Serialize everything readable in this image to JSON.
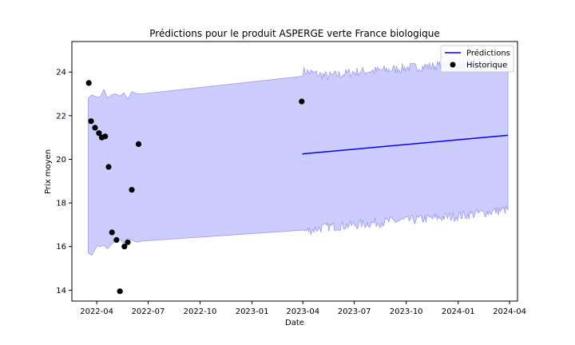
{
  "chart_data": {
    "type": "line",
    "title": "Prédictions pour le produit ASPERGE verte France biologique",
    "xlabel": "Date",
    "ylabel": "Prix moyen",
    "xlim": [
      "2022-02-16",
      "2024-04-15"
    ],
    "ylim": [
      13.5,
      25.4
    ],
    "x_ticks": [
      {
        "date": "2022-04-01",
        "label": "2022-04"
      },
      {
        "date": "2022-07-01",
        "label": "2022-07"
      },
      {
        "date": "2022-10-01",
        "label": "2022-10"
      },
      {
        "date": "2023-01-01",
        "label": "2023-01"
      },
      {
        "date": "2023-04-01",
        "label": "2023-04"
      },
      {
        "date": "2023-07-01",
        "label": "2023-07"
      },
      {
        "date": "2023-10-01",
        "label": "2023-10"
      },
      {
        "date": "2024-01-01",
        "label": "2024-01"
      },
      {
        "date": "2024-04-01",
        "label": "2024-04"
      }
    ],
    "y_ticks": [
      14,
      16,
      18,
      20,
      22,
      24
    ],
    "grid": false,
    "legend_position": "top-right",
    "legend": [
      {
        "label": "Prédictions",
        "type": "line",
        "color": "#0000ff"
      },
      {
        "label": "Historique",
        "type": "marker",
        "color": "#000000"
      }
    ],
    "series": [
      {
        "name": "Prédictions",
        "type": "line",
        "color": "#0000ff",
        "points": [
          {
            "x": "2023-03-31",
            "y": 20.25
          },
          {
            "x": "2024-03-29",
            "y": 21.1
          }
        ]
      },
      {
        "name": "Historique",
        "type": "scatter",
        "color": "#000000",
        "points": [
          {
            "x": "2022-03-18",
            "y": 23.5
          },
          {
            "x": "2022-03-22",
            "y": 21.75
          },
          {
            "x": "2022-03-29",
            "y": 21.45
          },
          {
            "x": "2022-04-05",
            "y": 21.2
          },
          {
            "x": "2022-04-10",
            "y": 21.0
          },
          {
            "x": "2022-04-16",
            "y": 21.05
          },
          {
            "x": "2022-04-22",
            "y": 19.65
          },
          {
            "x": "2022-04-28",
            "y": 16.65
          },
          {
            "x": "2022-05-06",
            "y": 16.3
          },
          {
            "x": "2022-05-12",
            "y": 13.95
          },
          {
            "x": "2022-05-20",
            "y": 16.0
          },
          {
            "x": "2022-05-26",
            "y": 16.2
          },
          {
            "x": "2022-06-02",
            "y": 18.6
          },
          {
            "x": "2022-06-14",
            "y": 20.7
          },
          {
            "x": "2023-03-30",
            "y": 22.65
          }
        ]
      }
    ],
    "uncertainty_band": {
      "color": "#ccccff",
      "edge_color": "#9c9cf0",
      "upper": [
        {
          "x": "2022-03-17",
          "y": 22.8
        },
        {
          "x": "2022-03-23",
          "y": 22.95
        },
        {
          "x": "2022-04-02",
          "y": 22.85
        },
        {
          "x": "2022-04-07",
          "y": 22.85
        },
        {
          "x": "2022-04-14",
          "y": 23.2
        },
        {
          "x": "2022-04-20",
          "y": 22.8
        },
        {
          "x": "2022-04-27",
          "y": 22.95
        },
        {
          "x": "2022-05-05",
          "y": 23.0
        },
        {
          "x": "2022-05-12",
          "y": 22.9
        },
        {
          "x": "2022-05-19",
          "y": 23.05
        },
        {
          "x": "2022-05-26",
          "y": 22.75
        },
        {
          "x": "2022-06-02",
          "y": 23.1
        },
        {
          "x": "2022-06-12",
          "y": 23.0
        },
        {
          "x": "2022-06-20",
          "y": 23.0
        },
        {
          "x": "2023-03-30",
          "y": 23.8
        },
        {
          "x": "2023-04-01",
          "y": 24.05
        },
        {
          "x": "2023-05-15",
          "y": 23.8
        },
        {
          "x": "2023-07-01",
          "y": 24.0
        },
        {
          "x": "2023-09-01",
          "y": 24.1
        },
        {
          "x": "2023-10-01",
          "y": 24.2
        },
        {
          "x": "2024-01-01",
          "y": 24.35
        },
        {
          "x": "2024-03-29",
          "y": 24.5
        }
      ],
      "lower": [
        {
          "x": "2022-03-17",
          "y": 15.7
        },
        {
          "x": "2022-03-23",
          "y": 15.6
        },
        {
          "x": "2022-04-02",
          "y": 16.05
        },
        {
          "x": "2022-04-07",
          "y": 16.0
        },
        {
          "x": "2022-04-14",
          "y": 16.05
        },
        {
          "x": "2022-04-20",
          "y": 15.9
        },
        {
          "x": "2022-04-27",
          "y": 16.1
        },
        {
          "x": "2022-05-05",
          "y": 16.3
        },
        {
          "x": "2022-05-12",
          "y": 16.35
        },
        {
          "x": "2022-05-19",
          "y": 16.15
        },
        {
          "x": "2022-05-26",
          "y": 16.4
        },
        {
          "x": "2022-06-02",
          "y": 16.3
        },
        {
          "x": "2022-06-12",
          "y": 16.2
        },
        {
          "x": "2022-06-20",
          "y": 16.25
        },
        {
          "x": "2023-03-30",
          "y": 16.75
        },
        {
          "x": "2023-04-01",
          "y": 16.7
        },
        {
          "x": "2023-05-15",
          "y": 16.9
        },
        {
          "x": "2023-07-01",
          "y": 17.0
        },
        {
          "x": "2023-09-01",
          "y": 17.15
        },
        {
          "x": "2023-10-01",
          "y": 17.2
        },
        {
          "x": "2024-01-01",
          "y": 17.4
        },
        {
          "x": "2024-03-29",
          "y": 17.7
        }
      ]
    }
  }
}
